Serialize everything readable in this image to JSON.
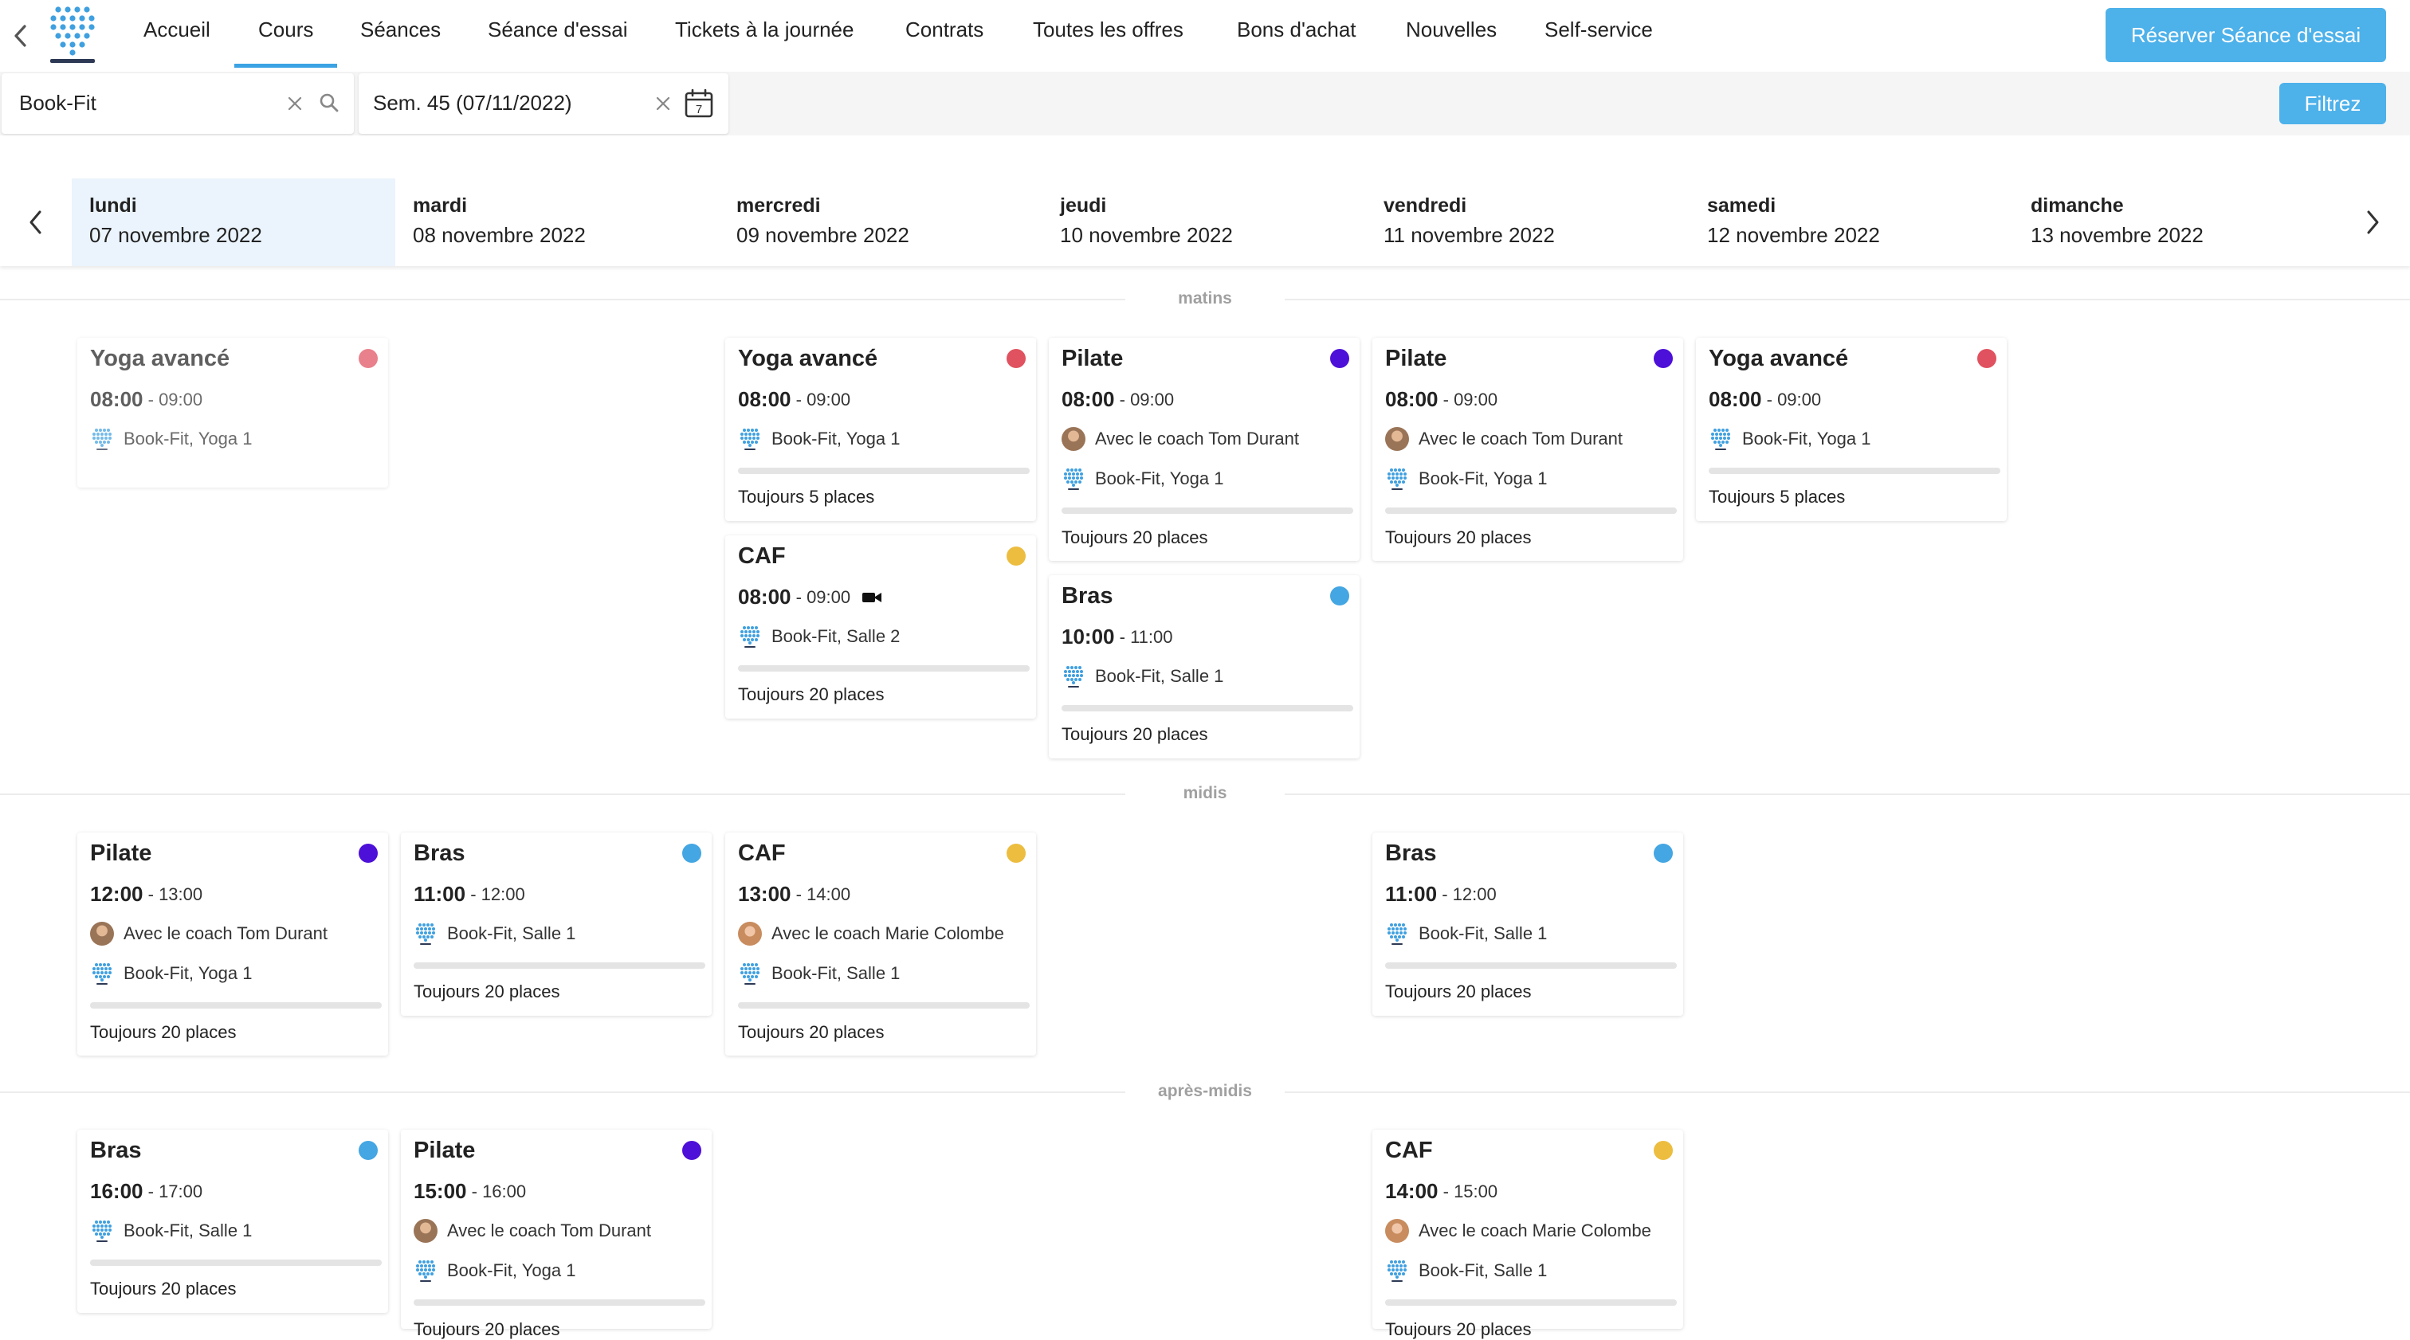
{
  "nav": {
    "items": [
      {
        "label": "Accueil"
      },
      {
        "label": "Cours"
      },
      {
        "label": "Séances"
      },
      {
        "label": "Séance d'essai"
      },
      {
        "label": "Tickets à la journée"
      },
      {
        "label": "Contrats"
      },
      {
        "label": "Toutes les offres"
      },
      {
        "label": "Bons d'achat"
      },
      {
        "label": "Nouvelles"
      },
      {
        "label": "Self-service"
      }
    ],
    "active": "Cours",
    "reserve_button": "Réserver Séance d'essai"
  },
  "filters": {
    "studio_value": "Book-Fit",
    "week_value": "Sem. 45 (07/11/2022)",
    "calendar_day": "7",
    "filter_button": "Filtrez"
  },
  "days": [
    {
      "name": "lundi",
      "date": "07 novembre 2022"
    },
    {
      "name": "mardi",
      "date": "08 novembre 2022"
    },
    {
      "name": "mercredi",
      "date": "09 novembre 2022"
    },
    {
      "name": "jeudi",
      "date": "10 novembre 2022"
    },
    {
      "name": "vendredi",
      "date": "11 novembre 2022"
    },
    {
      "name": "samedi",
      "date": "12 novembre 2022"
    },
    {
      "name": "dimanche",
      "date": "13 novembre 2022"
    }
  ],
  "selected_day": "lundi",
  "sections": {
    "morning": "matins",
    "noon": "midis",
    "afternoon": "après-midis"
  },
  "colors": {
    "accent": "#4db1ea",
    "yoga": "#e0525f",
    "pilate": "#4d10d8",
    "caf": "#ecbd3f",
    "bras": "#44a6e2"
  },
  "classes": [
    {
      "title": "Yoga avancé",
      "start": "08:00",
      "end": "09:00",
      "room": "Book-Fit, Yoga 1",
      "color": "#e0525f"
    },
    {
      "title": "Yoga avancé",
      "start": "08:00",
      "end": "09:00",
      "room": "Book-Fit, Yoga 1",
      "places": "Toujours 5 places",
      "color": "#e0525f"
    },
    {
      "title": "CAF",
      "start": "08:00",
      "end": "09:00",
      "video_icon": "video-camera-icon",
      "room": "Book-Fit, Salle 2",
      "places": "Toujours 20 places",
      "color": "#ecbd3f"
    },
    {
      "title": "Pilate",
      "start": "08:00",
      "end": "09:00",
      "coach": "Avec le coach Tom Durant",
      "room": "Book-Fit, Yoga 1",
      "places": "Toujours 20 places",
      "color": "#4d10d8"
    },
    {
      "title": "Bras",
      "start": "10:00",
      "end": "11:00",
      "room": "Book-Fit, Salle 1",
      "places": "Toujours 20 places",
      "color": "#44a6e2"
    },
    {
      "title": "Pilate",
      "start": "08:00",
      "end": "09:00",
      "coach": "Avec le coach Tom Durant",
      "room": "Book-Fit, Yoga 1",
      "places": "Toujours 20 places",
      "color": "#4d10d8"
    },
    {
      "title": "Yoga avancé",
      "start": "08:00",
      "end": "09:00",
      "room": "Book-Fit, Yoga 1",
      "places": "Toujours 5 places",
      "color": "#e0525f"
    },
    {
      "title": "Pilate",
      "start": "12:00",
      "end": "13:00",
      "coach": "Avec le coach Tom Durant",
      "room": "Book-Fit, Yoga 1",
      "places": "Toujours 20 places",
      "color": "#4d10d8"
    },
    {
      "title": "Bras",
      "start": "11:00",
      "end": "12:00",
      "room": "Book-Fit, Salle 1",
      "places": "Toujours 20 places",
      "color": "#44a6e2"
    },
    {
      "title": "CAF",
      "start": "13:00",
      "end": "14:00",
      "coach": "Avec le coach Marie Colombe",
      "room": "Book-Fit, Salle 1",
      "places": "Toujours 20 places",
      "color": "#ecbd3f"
    },
    {
      "title": "Bras",
      "start": "11:00",
      "end": "12:00",
      "room": "Book-Fit, Salle 1",
      "places": "Toujours 20 places",
      "color": "#44a6e2"
    },
    {
      "title": "Bras",
      "start": "16:00",
      "end": "17:00",
      "room": "Book-Fit, Salle 1",
      "places": "Toujours 20 places",
      "color": "#44a6e2"
    },
    {
      "title": "Pilate",
      "start": "15:00",
      "end": "16:00",
      "coach": "Avec le coach Tom Durant",
      "room": "Book-Fit, Yoga 1",
      "places": "Toujours 20 places",
      "color": "#4d10d8"
    },
    {
      "title": "CAF",
      "start": "14:00",
      "end": "15:00",
      "coach": "Avec le coach Marie Colombe",
      "room": "Book-Fit, Salle 1",
      "places": "Toujours 20 places",
      "color": "#ecbd3f"
    }
  ]
}
